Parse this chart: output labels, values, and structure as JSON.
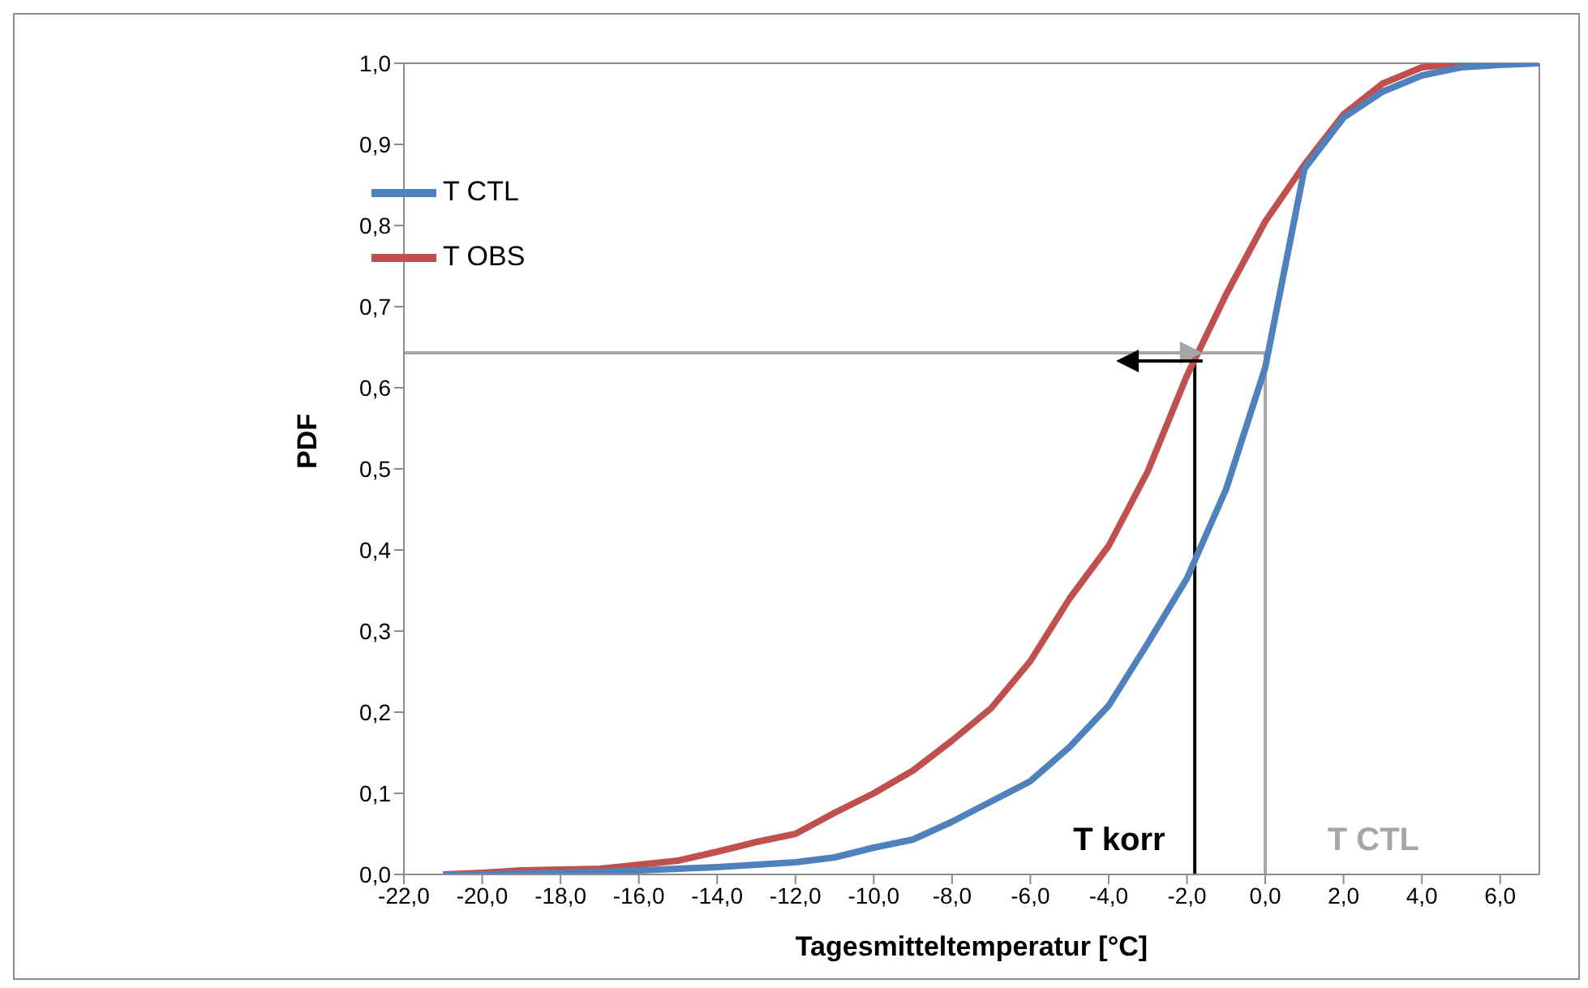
{
  "chart_data": {
    "type": "line",
    "xlabel": "Tagesmitteltemperatur [°C]",
    "ylabel": "PDF",
    "x": [
      -21,
      -20,
      -19,
      -18,
      -17,
      -16,
      -15,
      -14,
      -13,
      -12,
      -11,
      -10,
      -9,
      -8,
      -7,
      -6,
      -5,
      -4,
      -3,
      -2,
      -1,
      0,
      1,
      2,
      3,
      4,
      5,
      6,
      7
    ],
    "series": [
      {
        "name": "T OBS",
        "color": "#c0504d",
        "values": [
          0,
          0.002,
          0.005,
          0.006,
          0.007,
          0.012,
          0.017,
          0.028,
          0.04,
          0.05,
          0.076,
          0.1,
          0.128,
          0.165,
          0.205,
          0.263,
          0.34,
          0.405,
          0.497,
          0.615,
          0.715,
          0.805,
          0.875,
          0.937,
          0.975,
          0.995,
          1.0,
          1.0,
          1.0
        ]
      },
      {
        "name": "T CTL",
        "color": "#4f81bd",
        "values": [
          0,
          0,
          0.001,
          0.002,
          0.003,
          0.005,
          0.007,
          0.009,
          0.012,
          0.015,
          0.021,
          0.033,
          0.043,
          0.065,
          0.09,
          0.115,
          0.157,
          0.208,
          0.285,
          0.365,
          0.475,
          0.625,
          0.87,
          0.933,
          0.965,
          0.985,
          0.995,
          0.998,
          1.0
        ]
      }
    ],
    "xlim": [
      -22,
      7
    ],
    "xticks": [
      {
        "value": -22,
        "label": "-22,0"
      },
      {
        "value": -20,
        "label": "-20,0"
      },
      {
        "value": -18,
        "label": "-18,0"
      },
      {
        "value": -16,
        "label": "-16,0"
      },
      {
        "value": -14,
        "label": "-14,0"
      },
      {
        "value": -12,
        "label": "-12,0"
      },
      {
        "value": -10,
        "label": "-10,0"
      },
      {
        "value": -8,
        "label": "-8,0"
      },
      {
        "value": -6,
        "label": "-6,0"
      },
      {
        "value": -4,
        "label": "-4,0"
      },
      {
        "value": -2,
        "label": "-2,0"
      },
      {
        "value": 0,
        "label": "0,0"
      },
      {
        "value": 2,
        "label": "2,0"
      },
      {
        "value": 4,
        "label": "4,0"
      },
      {
        "value": 6,
        "label": "6,0"
      }
    ],
    "ylim": [
      0,
      1
    ],
    "yticks": [
      {
        "value": 0,
        "label": "0,0"
      },
      {
        "value": 0.1,
        "label": "0,1"
      },
      {
        "value": 0.2,
        "label": "0,2"
      },
      {
        "value": 0.3,
        "label": "0,3"
      },
      {
        "value": 0.4,
        "label": "0,4"
      },
      {
        "value": 0.5,
        "label": "0,5"
      },
      {
        "value": 0.6,
        "label": "0,6"
      },
      {
        "value": 0.7,
        "label": "0,7"
      },
      {
        "value": 0.8,
        "label": "0,8"
      },
      {
        "value": 0.9,
        "label": "0,9"
      },
      {
        "value": 1,
        "label": "1,0"
      }
    ],
    "ref_lines": [
      {
        "axis": "y",
        "value": 0.643,
        "color": "#a6a6a6"
      },
      {
        "axis": "x",
        "value": -1.8,
        "label": "T korr",
        "color": "#000000"
      },
      {
        "axis": "x",
        "value": 0,
        "label": "T CTL",
        "color": "#a6a6a6"
      }
    ],
    "legend": "top left",
    "grid": false,
    "marker": "none",
    "line_style": "solid"
  }
}
